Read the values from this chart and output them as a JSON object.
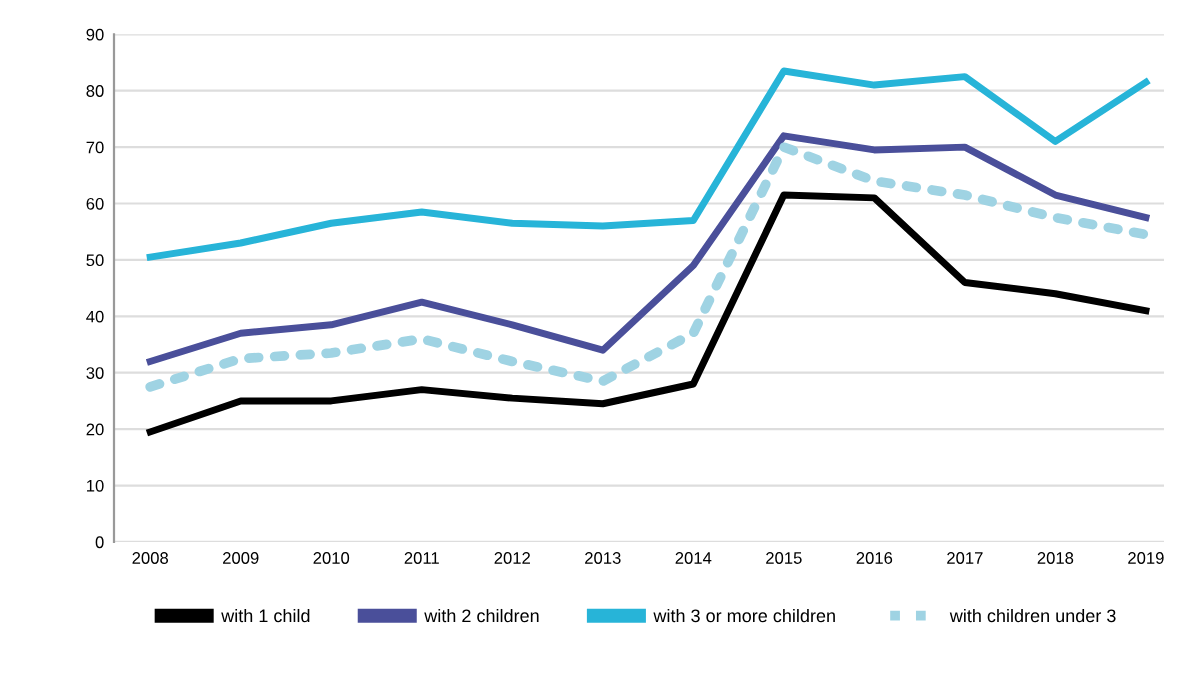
{
  "chart_data": {
    "type": "line",
    "x": [
      2008,
      2009,
      2010,
      2011,
      2012,
      2013,
      2014,
      2015,
      2016,
      2017,
      2018,
      2019
    ],
    "xlim": [
      2007.6,
      2019.2
    ],
    "xticks": [
      2008,
      2009,
      2010,
      2011,
      2012,
      2013,
      2014,
      2015,
      2016,
      2017,
      2018,
      2019
    ],
    "ylim": [
      0,
      90
    ],
    "yticks": [
      0,
      10,
      20,
      30,
      40,
      50,
      60,
      70,
      80,
      90
    ],
    "grid": "y",
    "legend": "bottom",
    "marker": "none",
    "series": [
      {
        "name": "with 1 child",
        "color": "#000000",
        "line_style": "solid",
        "values": [
          19.5,
          25,
          25,
          27,
          25.5,
          24.5,
          28,
          61.5,
          61,
          46,
          44,
          41
        ]
      },
      {
        "name": "with 2 children",
        "color": "#4a4f9a",
        "line_style": "solid",
        "values": [
          32,
          37,
          38.5,
          42.5,
          38.5,
          34,
          49,
          72,
          69.5,
          70,
          61.5,
          57.5
        ]
      },
      {
        "name": "with 3 or more children",
        "color": "#27b4d8",
        "line_style": "solid",
        "values": [
          50.5,
          53,
          56.5,
          58.5,
          56.5,
          56,
          57,
          83.5,
          81,
          82.5,
          71,
          81.5
        ]
      },
      {
        "name": "with children under 3",
        "color": "#9fd3e3",
        "line_style": "dotted",
        "values": [
          27.5,
          32.5,
          33.5,
          36,
          32,
          28.5,
          37,
          70,
          64,
          61.5,
          57.5,
          54.5
        ]
      }
    ]
  }
}
